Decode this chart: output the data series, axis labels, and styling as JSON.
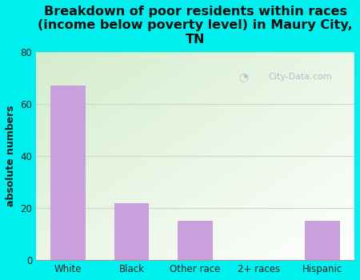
{
  "categories": [
    "White",
    "Black",
    "Other race",
    "2+ races",
    "Hispanic"
  ],
  "values": [
    67,
    22,
    15,
    0,
    15
  ],
  "bar_color": "#c9a0dc",
  "title": "Breakdown of poor residents within races\n(income below poverty level) in Maury City,\nTN",
  "ylabel": "absolute numbers",
  "ylim": [
    0,
    80
  ],
  "yticks": [
    0,
    20,
    40,
    60,
    80
  ],
  "background_color": "#00f0f0",
  "plot_bg_top_right": "#ffffff",
  "plot_bg_bottom_left": "#d4edcc",
  "grid_color": "#c8ddc0",
  "title_fontsize": 11.5,
  "axis_fontsize": 9,
  "tick_fontsize": 8.5,
  "watermark": "City-Data.com"
}
